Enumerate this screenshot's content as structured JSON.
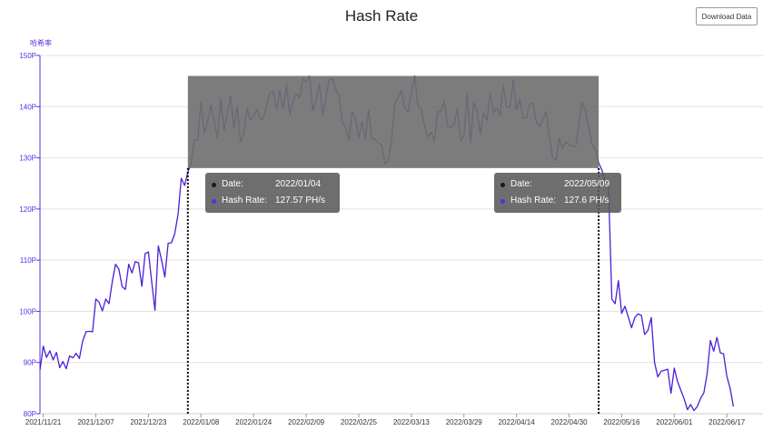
{
  "title": "Hash Rate",
  "download_label": "Download Data",
  "y_axis_label": "哈希率",
  "chart_data": {
    "type": "line",
    "title": "Hash Rate",
    "ylabel": "哈希率",
    "ylim": [
      80,
      150
    ],
    "yticks": [
      "80P",
      "90P",
      "100P",
      "110P",
      "120P",
      "130P",
      "140P",
      "150P"
    ],
    "xticks": [
      "2021/11/21",
      "2021/12/07",
      "2021/12/23",
      "2022/01/08",
      "2022/01/24",
      "2022/02/09",
      "2022/02/25",
      "2022/03/13",
      "2022/03/29",
      "2022/04/14",
      "2022/04/30",
      "2022/05/16",
      "2022/06/01",
      "2022/06/17"
    ],
    "x_start": "2021/11/20",
    "x_end": "2022/06/28",
    "grid": true,
    "line_color": "#4b1fd6",
    "selection": {
      "from": "2022/01/04",
      "to": "2022/05/09",
      "y_from": 128,
      "y_to": 146,
      "color": "#6e6e6e"
    },
    "series": [
      {
        "values": [
          88.5,
          93.2,
          91.0,
          92.3,
          90.5,
          92.0,
          89.0,
          90.2,
          88.8,
          91.3,
          90.9,
          91.8,
          90.8,
          94.2,
          96.0,
          96.1,
          96.0,
          102.4,
          101.8,
          100.1,
          102.4,
          101.5,
          105.8,
          109.2,
          108.3,
          104.8,
          104.3,
          109.2,
          107.5,
          109.7,
          109.5,
          104.9,
          111.3,
          111.6,
          105.8,
          100.2,
          112.8,
          110.0,
          106.7,
          113.3,
          113.4,
          115.1,
          118.9,
          126.0,
          124.6,
          127.2,
          128.9,
          133.5,
          133.5,
          140.9,
          134.9,
          137.0,
          140.3,
          137.2,
          133.8,
          141.5,
          135.4,
          138.7,
          142.1,
          135.8,
          140.1,
          133.1,
          134.8,
          139.6,
          137.4,
          138.0,
          139.5,
          137.6,
          137.7,
          140.4,
          142.8,
          143.0,
          139.4,
          143.2,
          139.6,
          144.3,
          138.4,
          141.1,
          142.5,
          141.7,
          145.4,
          144.9,
          146.0,
          139.2,
          141.2,
          144.4,
          138.5,
          141.9,
          145.2,
          145.5,
          143.3,
          142.1,
          136.8,
          136.0,
          133.4,
          138.9,
          137.9,
          133.8,
          137.1,
          133.6,
          139.3,
          133.8,
          133.6,
          132.8,
          132.5,
          128.8,
          129.5,
          133.5,
          140.6,
          141.9,
          143.2,
          139.6,
          139.0,
          142.6,
          146.0,
          140.2,
          139.7,
          136.2,
          134.1,
          135.0,
          133.2,
          139.0,
          139.0,
          141.1,
          136.2,
          136.0,
          136.6,
          139.6,
          133.4,
          134.3,
          142.5,
          133.0,
          140.8,
          139.2,
          134.6,
          138.8,
          137.3,
          142.6,
          138.8,
          139.7,
          138.2,
          144.1,
          140.0,
          139.8,
          145.2,
          139.4,
          141.5,
          137.7,
          137.9,
          140.6,
          140.6,
          137.1,
          136.1,
          137.3,
          139.1,
          134.1,
          130.1,
          129.5,
          133.8,
          131.8,
          133.2,
          132.5,
          132.3,
          132.2,
          136.9,
          140.9,
          139.2,
          135.9,
          132.4,
          131.8,
          129.0,
          127.6,
          125.3,
          124.5,
          102.4,
          101.5,
          106.0,
          99.6,
          101.0,
          98.9,
          96.8,
          98.8,
          99.5,
          99.2,
          95.5,
          96.3,
          98.8,
          90.0,
          87.2,
          88.3,
          88.5,
          88.7,
          84.0,
          88.9,
          86.3,
          84.6,
          82.9,
          80.8,
          81.8,
          80.6,
          81.4,
          83.0,
          84.1,
          87.8,
          94.3,
          92.2,
          94.9,
          91.9,
          91.7,
          87.3,
          85.0,
          81.4
        ]
      }
    ],
    "tooltips": [
      {
        "date_label": "Date:",
        "date": "2022/01/04",
        "rate_label": "Hash Rate:",
        "rate": "127.57 PH/s"
      },
      {
        "date_label": "Date:",
        "date": "2022/05/09",
        "rate_label": "Hash Rate:",
        "rate": "127.6 PH/s"
      }
    ],
    "dot_colors": {
      "date": "#1a1a1a",
      "rate": "#5a2be2"
    }
  }
}
